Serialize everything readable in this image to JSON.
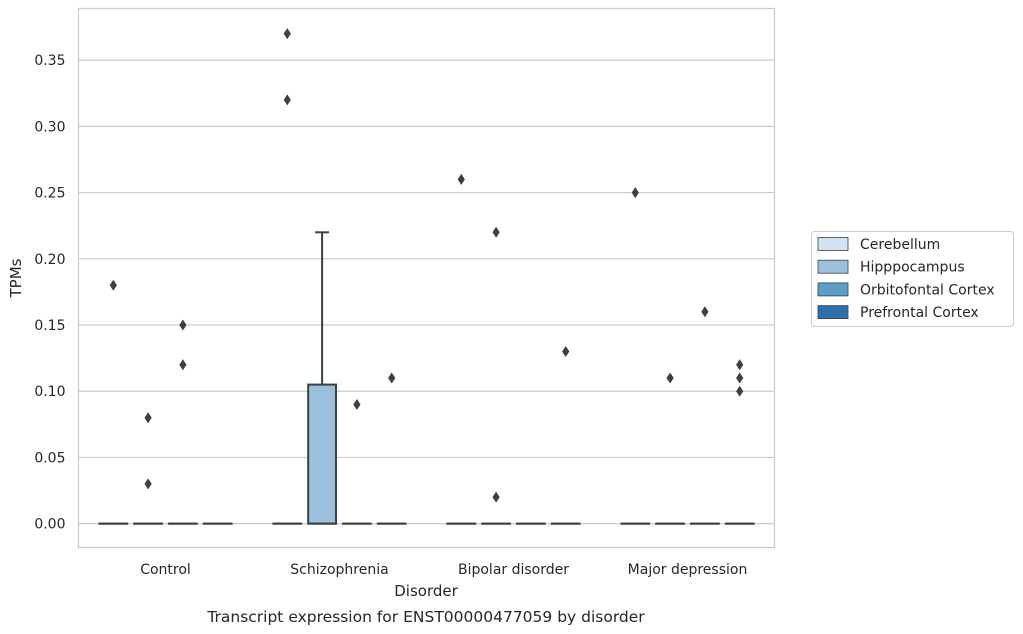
{
  "chart_data": {
    "type": "box",
    "caption": "Transcript expression for ENST00000477059 by disorder",
    "xlabel": "Disorder",
    "ylabel": "TPMs",
    "ylim": [
      -0.018,
      0.389
    ],
    "yticks": [
      0.0,
      0.05,
      0.1,
      0.15,
      0.2,
      0.25,
      0.3,
      0.35
    ],
    "ytick_labels": [
      "0.00",
      "0.05",
      "0.10",
      "0.15",
      "0.20",
      "0.25",
      "0.30",
      "0.35"
    ],
    "grid": true,
    "legend_position": "right",
    "categories": [
      "Control",
      "Schizophrenia",
      "Bipolar disorder",
      "Major depression"
    ],
    "series": [
      {
        "name": "Cerebellum",
        "color": "#d1e2f2",
        "boxes": [
          {
            "category": "Control",
            "q1": 0,
            "median": 0,
            "q3": 0,
            "whisker_low": 0,
            "whisker_high": 0,
            "outliers": [
              0.18
            ]
          },
          {
            "category": "Schizophrenia",
            "q1": 0,
            "median": 0,
            "q3": 0,
            "whisker_low": 0,
            "whisker_high": 0,
            "outliers": [
              0.37,
              0.32
            ]
          },
          {
            "category": "Bipolar disorder",
            "q1": 0,
            "median": 0,
            "q3": 0,
            "whisker_low": 0,
            "whisker_high": 0,
            "outliers": [
              0.26
            ]
          },
          {
            "category": "Major depression",
            "q1": 0,
            "median": 0,
            "q3": 0,
            "whisker_low": 0,
            "whisker_high": 0,
            "outliers": [
              0.25
            ]
          }
        ]
      },
      {
        "name": "Hipppocampus",
        "color": "#9ac1db",
        "boxes": [
          {
            "category": "Control",
            "q1": 0,
            "median": 0,
            "q3": 0,
            "whisker_low": 0,
            "whisker_high": 0,
            "outliers": [
              0.08,
              0.03
            ]
          },
          {
            "category": "Schizophrenia",
            "q1": 0,
            "median": 0,
            "q3": 0.105,
            "whisker_low": 0,
            "whisker_high": 0.22,
            "outliers": []
          },
          {
            "category": "Bipolar disorder",
            "q1": 0,
            "median": 0,
            "q3": 0,
            "whisker_low": 0,
            "whisker_high": 0,
            "outliers": [
              0.22,
              0.02
            ]
          },
          {
            "category": "Major depression",
            "q1": 0,
            "median": 0,
            "q3": 0,
            "whisker_low": 0,
            "whisker_high": 0,
            "outliers": [
              0.11
            ]
          }
        ]
      },
      {
        "name": "Orbitofontal Cortex",
        "color": "#5a9ec9",
        "boxes": [
          {
            "category": "Control",
            "q1": 0,
            "median": 0,
            "q3": 0,
            "whisker_low": 0,
            "whisker_high": 0,
            "outliers": [
              0.15,
              0.12
            ]
          },
          {
            "category": "Schizophrenia",
            "q1": 0,
            "median": 0,
            "q3": 0,
            "whisker_low": 0,
            "whisker_high": 0,
            "outliers": [
              0.09
            ]
          },
          {
            "category": "Bipolar disorder",
            "q1": 0,
            "median": 0,
            "q3": 0,
            "whisker_low": 0,
            "whisker_high": 0,
            "outliers": []
          },
          {
            "category": "Major depression",
            "q1": 0,
            "median": 0,
            "q3": 0,
            "whisker_low": 0,
            "whisker_high": 0,
            "outliers": [
              0.16
            ]
          }
        ]
      },
      {
        "name": "Prefrontal Cortex",
        "color": "#2e6fab",
        "boxes": [
          {
            "category": "Control",
            "q1": 0,
            "median": 0,
            "q3": 0,
            "whisker_low": 0,
            "whisker_high": 0,
            "outliers": []
          },
          {
            "category": "Schizophrenia",
            "q1": 0,
            "median": 0,
            "q3": 0,
            "whisker_low": 0,
            "whisker_high": 0,
            "outliers": [
              0.11
            ]
          },
          {
            "category": "Bipolar disorder",
            "q1": 0,
            "median": 0,
            "q3": 0,
            "whisker_low": 0,
            "whisker_high": 0,
            "outliers": [
              0.13
            ]
          },
          {
            "category": "Major depression",
            "q1": 0,
            "median": 0,
            "q3": 0,
            "whisker_low": 0,
            "whisker_high": 0,
            "outliers": [
              0.12,
              0.11,
              0.1
            ]
          }
        ]
      }
    ]
  }
}
